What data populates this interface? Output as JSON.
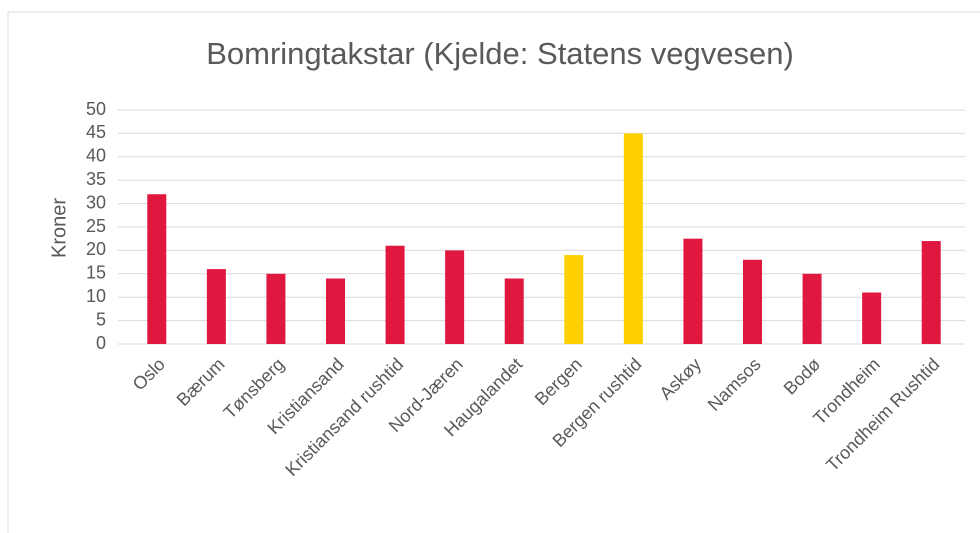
{
  "chart_data": {
    "type": "bar",
    "title": "Bomringtakstar (Kjelde: Statens vegvesen)",
    "y_label": "Kroner",
    "categories": [
      "Oslo",
      "Bærum",
      "Tønsberg",
      "Kristiansand",
      "Kristiansand rushtid",
      "Nord-Jæren",
      "Haugalandet",
      "Bergen",
      "Bergen rushtid",
      "Askøy",
      "Namsos",
      "Bodø",
      "Trondheim",
      "Trondheim Rushtid"
    ],
    "values": [
      32,
      16,
      15,
      14,
      21,
      20,
      14,
      19,
      45,
      22.5,
      18,
      15,
      11,
      22
    ],
    "colors": [
      "#e0173f",
      "#e0173f",
      "#e0173f",
      "#e0173f",
      "#e0173f",
      "#e0173f",
      "#e0173f",
      "#ffd000",
      "#ffd000",
      "#e0173f",
      "#e0173f",
      "#e0173f",
      "#e0173f",
      "#e0173f"
    ],
    "ylim": [
      0,
      50
    ],
    "yticks": [
      0,
      5,
      10,
      15,
      20,
      25,
      30,
      35,
      40,
      45,
      50
    ],
    "grid": true
  }
}
